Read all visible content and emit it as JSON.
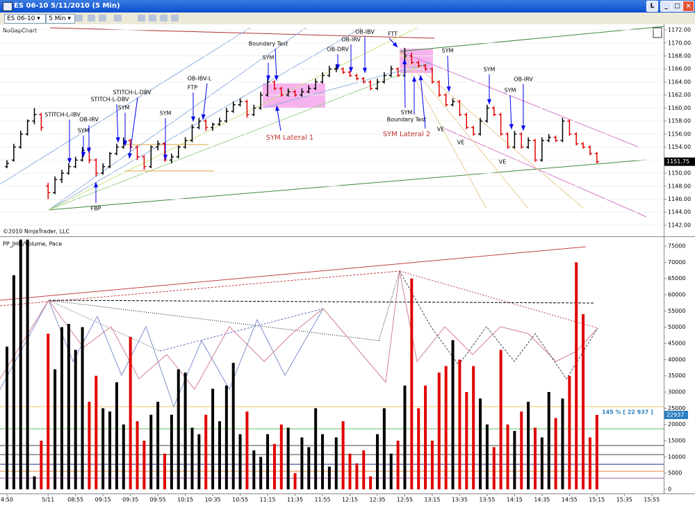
{
  "window": {
    "title": "ES 06-10  5/11/2010 (5 Min)",
    "instrument": "ES 06-10",
    "interval": "5 Min"
  },
  "chart_data": {
    "type": "ohlc",
    "title": "NoGapChart",
    "copyright": "©2010 NinjaTrader, LLC",
    "categories": [
      "4:50",
      null,
      null,
      null,
      null,
      null,
      "5/11",
      null,
      null,
      null,
      "08:55",
      null,
      null,
      null,
      "09:15",
      null,
      null,
      null,
      "09:35",
      null,
      null,
      null,
      "09:55",
      null,
      null,
      null,
      "10:15",
      null,
      null,
      null,
      "10:35",
      null,
      null,
      null,
      "10:55",
      null,
      null,
      null,
      "11:15",
      null,
      null,
      null,
      "11:35",
      null,
      null,
      null,
      "11:55",
      null,
      null,
      null,
      "12:15",
      null,
      null,
      null,
      "12:35",
      null,
      null,
      null,
      "12:55",
      null,
      null,
      null,
      "13:15",
      null,
      null,
      null,
      "13:35",
      null,
      null,
      null,
      "13:55",
      null,
      null,
      null,
      "14:15",
      null,
      null,
      null,
      "14:35",
      null,
      null,
      null,
      "14:55",
      null,
      null,
      null,
      "15:15",
      null,
      null,
      null,
      "15:35",
      null,
      null,
      null,
      "15:55",
      null
    ],
    "bars": [
      [
        1151,
        1152,
        1150.75,
        1151.5,
        44000
      ],
      [
        1152,
        1154.5,
        1151.75,
        1154,
        66000
      ],
      [
        1154,
        1156.5,
        1153.75,
        1156,
        77000
      ],
      [
        1156,
        1158.25,
        1155.75,
        1158,
        77000
      ],
      [
        1158,
        1160,
        1157.5,
        1159,
        4000
      ],
      [
        1159,
        1159.25,
        1156.5,
        1157,
        15000
      ],
      [
        1148,
        1148.5,
        1146,
        1147,
        48000
      ],
      [
        1147,
        1149.5,
        1146.75,
        1149,
        37000
      ],
      [
        1149,
        1150.5,
        1148.5,
        1150,
        50000
      ],
      [
        1150,
        1151.5,
        1149.75,
        1151,
        51000
      ],
      [
        1151,
        1152.5,
        1150.75,
        1152,
        43000
      ],
      [
        1152,
        1154,
        1151.75,
        1153.5,
        50000
      ],
      [
        1153.5,
        1154,
        1151.5,
        1152,
        27000
      ],
      [
        1152,
        1152.25,
        1149.5,
        1150,
        35000
      ],
      [
        1150,
        1151.5,
        1149.75,
        1151,
        25000
      ],
      [
        1151,
        1153.25,
        1150.75,
        1153,
        24000
      ],
      [
        1153,
        1154.5,
        1152.75,
        1154,
        33000
      ],
      [
        1154,
        1155.5,
        1153.75,
        1155,
        20000
      ],
      [
        1155,
        1155.25,
        1153.5,
        1154,
        47000
      ],
      [
        1154,
        1154.25,
        1152,
        1152.5,
        21000
      ],
      [
        1152.5,
        1152.75,
        1150.5,
        1151,
        15000
      ],
      [
        1151,
        1154.25,
        1150.75,
        1154,
        23000
      ],
      [
        1154,
        1155,
        1153.5,
        1154.5,
        27000
      ],
      [
        1154.5,
        1154.75,
        1151.75,
        1152,
        11000
      ],
      [
        1152,
        1153,
        1151.5,
        1152.5,
        23000
      ],
      [
        1152.5,
        1154.25,
        1152.25,
        1154,
        37000
      ],
      [
        1154,
        1155.5,
        1153.75,
        1155,
        36000
      ],
      [
        1155,
        1157.5,
        1154.75,
        1157,
        19000
      ],
      [
        1157,
        1158.5,
        1156.75,
        1158,
        17000
      ],
      [
        1158,
        1158.25,
        1156.5,
        1157,
        23000
      ],
      [
        1157,
        1157.75,
        1156.5,
        1157.5,
        31000
      ],
      [
        1157.5,
        1158.5,
        1157.25,
        1158,
        21000
      ],
      [
        1158,
        1160,
        1157.75,
        1159.5,
        32000
      ],
      [
        1159.5,
        1161,
        1159.25,
        1160.5,
        39000
      ],
      [
        1160.5,
        1161.5,
        1160.25,
        1161,
        17000
      ],
      [
        1161,
        1161.25,
        1158.5,
        1159,
        24000
      ],
      [
        1159,
        1160.5,
        1158.75,
        1160,
        12000
      ],
      [
        1160,
        1162.5,
        1159.75,
        1162,
        10000
      ],
      [
        1162,
        1164.5,
        1161.75,
        1164,
        17000
      ],
      [
        1164,
        1164.25,
        1162.75,
        1163,
        14000
      ],
      [
        1163,
        1163.25,
        1161.75,
        1162,
        20000
      ],
      [
        1162,
        1163,
        1161.75,
        1162.5,
        19000
      ],
      [
        1162.5,
        1162.75,
        1161.75,
        1162,
        5000
      ],
      [
        1162,
        1163,
        1161.75,
        1162.5,
        16000
      ],
      [
        1162.5,
        1163.5,
        1162.25,
        1163,
        13000
      ],
      [
        1163,
        1164.5,
        1162.75,
        1164,
        25000
      ],
      [
        1164,
        1165.5,
        1163.75,
        1165,
        17000
      ],
      [
        1165,
        1166.5,
        1164.75,
        1166,
        7000
      ],
      [
        1166,
        1166.75,
        1165.5,
        1166,
        16000
      ],
      [
        1166,
        1166.25,
        1165.25,
        1165.5,
        21000
      ],
      [
        1165.5,
        1165.75,
        1164.75,
        1165,
        11000
      ],
      [
        1165,
        1165.25,
        1164.25,
        1164.5,
        8000
      ],
      [
        1164.5,
        1164.75,
        1163.75,
        1164,
        12000
      ],
      [
        1164,
        1164.25,
        1162.75,
        1163,
        4000
      ],
      [
        1163,
        1164.5,
        1162.75,
        1164,
        17000
      ],
      [
        1164,
        1165.5,
        1163.75,
        1165,
        25000
      ],
      [
        1165,
        1166.5,
        1164.75,
        1166,
        11000
      ],
      [
        1166,
        1166.25,
        1164.75,
        1165,
        15000
      ],
      [
        1165,
        1169.25,
        1164.75,
        1168,
        32000
      ],
      [
        1168,
        1168.5,
        1166.75,
        1167,
        65000
      ],
      [
        1167,
        1167.25,
        1166.25,
        1166.5,
        25000
      ],
      [
        1166.5,
        1166.75,
        1165.75,
        1166,
        32000
      ],
      [
        1166,
        1166.25,
        1163.75,
        1164,
        15000
      ],
      [
        1164,
        1164.25,
        1161.75,
        1162,
        36000
      ],
      [
        1162,
        1162.25,
        1160.25,
        1160.5,
        38000
      ],
      [
        1160.5,
        1161.5,
        1160.25,
        1161,
        46000
      ],
      [
        1161,
        1161.25,
        1158.75,
        1159,
        40000
      ],
      [
        1159,
        1159.25,
        1156.75,
        1157,
        30000
      ],
      [
        1157,
        1157.25,
        1155.75,
        1156,
        38000
      ],
      [
        1156,
        1158.5,
        1155.75,
        1158,
        28000
      ],
      [
        1158,
        1160.5,
        1157.75,
        1160,
        20000
      ],
      [
        1160,
        1160.25,
        1158.75,
        1159,
        13000
      ],
      [
        1159,
        1159.25,
        1155.75,
        1156,
        43000
      ],
      [
        1156,
        1156.25,
        1153.75,
        1154,
        20000
      ],
      [
        1154,
        1156.5,
        1153.75,
        1156,
        18000
      ],
      [
        1156,
        1156.25,
        1153.75,
        1154,
        24000
      ],
      [
        1154,
        1155.5,
        1153.75,
        1155,
        27000
      ],
      [
        1155,
        1155.25,
        1151.75,
        1152,
        19000
      ],
      [
        1152,
        1155.5,
        1151.75,
        1155,
        16000
      ],
      [
        1155,
        1156,
        1154.75,
        1155.5,
        30000
      ],
      [
        1155.5,
        1155.75,
        1154.75,
        1155,
        22000
      ],
      [
        1155,
        1158.5,
        1154.75,
        1158,
        28000
      ],
      [
        1158,
        1158.25,
        1155.75,
        1156,
        35000
      ],
      [
        1156,
        1156.25,
        1154.25,
        1154.5,
        70000
      ],
      [
        1154.5,
        1154.75,
        1153.75,
        1154,
        54000
      ],
      [
        1154,
        1154.25,
        1152.75,
        1153,
        16000
      ],
      [
        1153,
        1153.25,
        1151.5,
        1151.75,
        22937
      ],
      null,
      null,
      null,
      null,
      null,
      null,
      null,
      null,
      null
    ],
    "up_color": "#000000",
    "down_color": "#e00000",
    "ylim": [
      1140.5,
      1172.75
    ],
    "yticks": [
      {
        "value": 1142,
        "label": "1142.00"
      },
      {
        "value": 1144,
        "label": "1144.00"
      },
      {
        "value": 1146,
        "label": "1146.00"
      },
      {
        "value": 1148,
        "label": "1148.00"
      },
      {
        "value": 1150,
        "label": "1150.00"
      },
      {
        "value": 1152,
        "label": "1152.00"
      },
      {
        "value": 1154,
        "label": "1154.00"
      },
      {
        "value": 1156,
        "label": "1156.00"
      },
      {
        "value": 1158,
        "label": "1158.00"
      },
      {
        "value": 1160,
        "label": "1160.00"
      },
      {
        "value": 1162,
        "label": "1162.00"
      },
      {
        "value": 1164,
        "label": "1164.00"
      },
      {
        "value": 1166,
        "label": "1166.00"
      },
      {
        "value": 1168,
        "label": "1168.00"
      },
      {
        "value": 1170,
        "label": "1170.00"
      },
      {
        "value": 1172,
        "label": "1172.00"
      }
    ],
    "last_price": 1151.75,
    "annotations": [
      "STITCH-L-IBV",
      "SYM",
      "OB-IRV",
      "FBP",
      "STITCH-L-DBV",
      "STITCH-L-DBV",
      "SYM",
      "SYM",
      "FTP",
      "OB-IBV-L",
      "Boundary Test",
      "SYM",
      "SYM Lateral 1",
      "OB-DRV",
      "OB-IRV",
      "OB-IBV",
      "FTT",
      "SYM",
      "Boundary Test",
      "SYM Lateral 2",
      "SYM",
      "VE",
      "VE",
      "SYM",
      "VE",
      "SYM",
      "OB-IRV"
    ],
    "volume_panel": {
      "title": "PP_JHM/Volume, Pace",
      "pace_label": "145 % [ 22 937 ]",
      "ylim": [
        -850,
        77150
      ],
      "yticks": [
        0,
        5000,
        10000,
        15000,
        20000,
        25000,
        30000,
        35000,
        40000,
        45000,
        50000,
        55000,
        60000,
        65000,
        70000,
        75000
      ]
    }
  }
}
